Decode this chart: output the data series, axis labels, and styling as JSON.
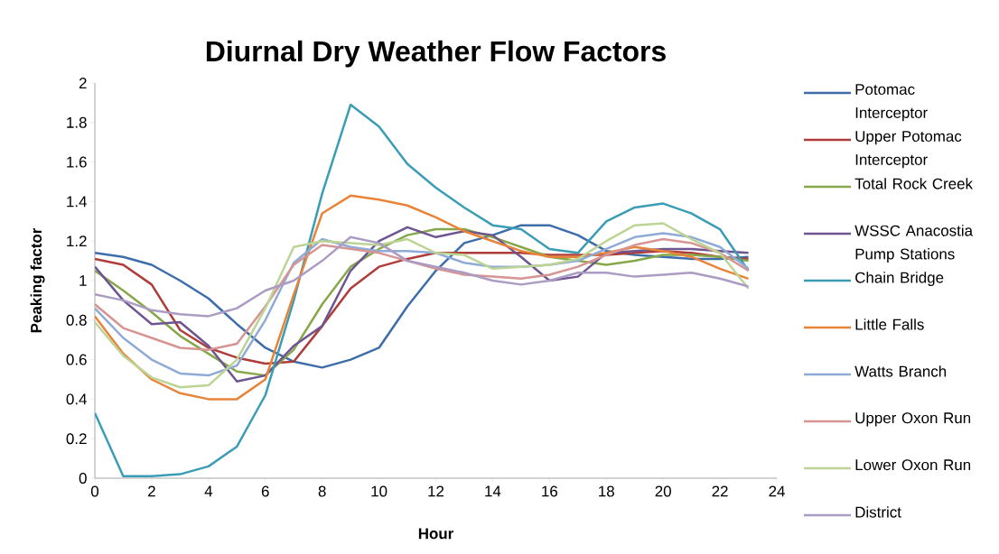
{
  "chart_data": {
    "type": "line",
    "title": "Diurnal Dry Weather Flow Factors",
    "xlabel": "Hour",
    "ylabel": "Peaking factor",
    "x": [
      0,
      1,
      2,
      3,
      4,
      5,
      6,
      7,
      8,
      9,
      10,
      11,
      12,
      13,
      14,
      15,
      16,
      17,
      18,
      19,
      20,
      21,
      22,
      23
    ],
    "xlim": [
      0,
      24
    ],
    "xticks": [
      0,
      2,
      4,
      6,
      8,
      10,
      12,
      14,
      16,
      18,
      20,
      22,
      24
    ],
    "ylim": [
      0,
      2
    ],
    "yticks": [
      0,
      0.2,
      0.4,
      0.6,
      0.8,
      1,
      1.2,
      1.4,
      1.6,
      1.8,
      2
    ],
    "legend": "right",
    "series": [
      {
        "name": "Potomac Interceptor",
        "color": "#3d6ea9",
        "values": [
          1.14,
          1.12,
          1.08,
          1.0,
          0.91,
          0.78,
          0.66,
          0.59,
          0.56,
          0.6,
          0.66,
          0.87,
          1.05,
          1.19,
          1.23,
          1.28,
          1.28,
          1.23,
          1.15,
          1.13,
          1.12,
          1.11,
          1.11,
          1.12
        ]
      },
      {
        "name": "Upper Potomac Interceptor",
        "color": "#b03c39",
        "values": [
          1.11,
          1.08,
          0.98,
          0.75,
          0.66,
          0.61,
          0.58,
          0.59,
          0.77,
          0.96,
          1.07,
          1.11,
          1.14,
          1.14,
          1.14,
          1.14,
          1.13,
          1.13,
          1.13,
          1.14,
          1.15,
          1.14,
          1.12,
          1.11
        ]
      },
      {
        "name": "Total Rock Creek",
        "color": "#86a84a",
        "values": [
          1.05,
          0.95,
          0.84,
          0.72,
          0.63,
          0.54,
          0.52,
          0.65,
          0.88,
          1.07,
          1.16,
          1.23,
          1.26,
          1.26,
          1.22,
          1.17,
          1.12,
          1.1,
          1.08,
          1.1,
          1.13,
          1.13,
          1.12,
          1.1
        ]
      },
      {
        "name": "WSSC Anacostia Pump Stations",
        "color": "#6e5491",
        "values": [
          1.07,
          0.9,
          0.78,
          0.79,
          0.67,
          0.49,
          0.52,
          0.67,
          0.77,
          1.05,
          1.2,
          1.27,
          1.22,
          1.25,
          1.23,
          1.12,
          1.0,
          1.02,
          1.14,
          1.15,
          1.16,
          1.16,
          1.15,
          1.14
        ]
      },
      {
        "name": "Chain Bridge",
        "color": "#3a9db5",
        "values": [
          0.33,
          0.01,
          0.01,
          0.02,
          0.06,
          0.16,
          0.42,
          0.9,
          1.44,
          1.89,
          1.78,
          1.59,
          1.47,
          1.37,
          1.28,
          1.26,
          1.16,
          1.14,
          1.3,
          1.37,
          1.39,
          1.34,
          1.26,
          1.05
        ]
      },
      {
        "name": "Little Falls",
        "color": "#e8843a",
        "values": [
          0.82,
          0.63,
          0.5,
          0.43,
          0.4,
          0.4,
          0.5,
          0.93,
          1.34,
          1.43,
          1.41,
          1.38,
          1.32,
          1.25,
          1.2,
          1.15,
          1.12,
          1.12,
          1.14,
          1.17,
          1.15,
          1.12,
          1.06,
          1.01
        ]
      },
      {
        "name": "Watts Branch",
        "color": "#8eaad6",
        "values": [
          0.86,
          0.71,
          0.6,
          0.53,
          0.52,
          0.57,
          0.8,
          1.09,
          1.21,
          1.17,
          1.15,
          1.15,
          1.14,
          1.09,
          1.07,
          1.07,
          1.08,
          1.1,
          1.16,
          1.22,
          1.24,
          1.22,
          1.17,
          1.06
        ]
      },
      {
        "name": "Upper Oxon Run",
        "color": "#d69593",
        "values": [
          0.88,
          0.76,
          0.71,
          0.66,
          0.65,
          0.68,
          0.87,
          1.08,
          1.18,
          1.16,
          1.14,
          1.1,
          1.06,
          1.03,
          1.02,
          1.01,
          1.03,
          1.07,
          1.13,
          1.18,
          1.21,
          1.19,
          1.14,
          1.05
        ]
      },
      {
        "name": "Lower Oxon Run",
        "color": "#bcd494",
        "values": [
          0.79,
          0.62,
          0.51,
          0.46,
          0.47,
          0.6,
          0.86,
          1.17,
          1.2,
          1.19,
          1.18,
          1.21,
          1.14,
          1.13,
          1.06,
          1.07,
          1.08,
          1.11,
          1.2,
          1.28,
          1.29,
          1.21,
          1.14,
          0.96
        ]
      },
      {
        "name": "District",
        "color": "#ab9cc4",
        "values": [
          0.93,
          0.9,
          0.85,
          0.83,
          0.82,
          0.86,
          0.95,
          1.0,
          1.1,
          1.22,
          1.19,
          1.1,
          1.07,
          1.04,
          1.0,
          0.98,
          1.0,
          1.04,
          1.04,
          1.02,
          1.03,
          1.04,
          1.01,
          0.97
        ]
      }
    ]
  }
}
